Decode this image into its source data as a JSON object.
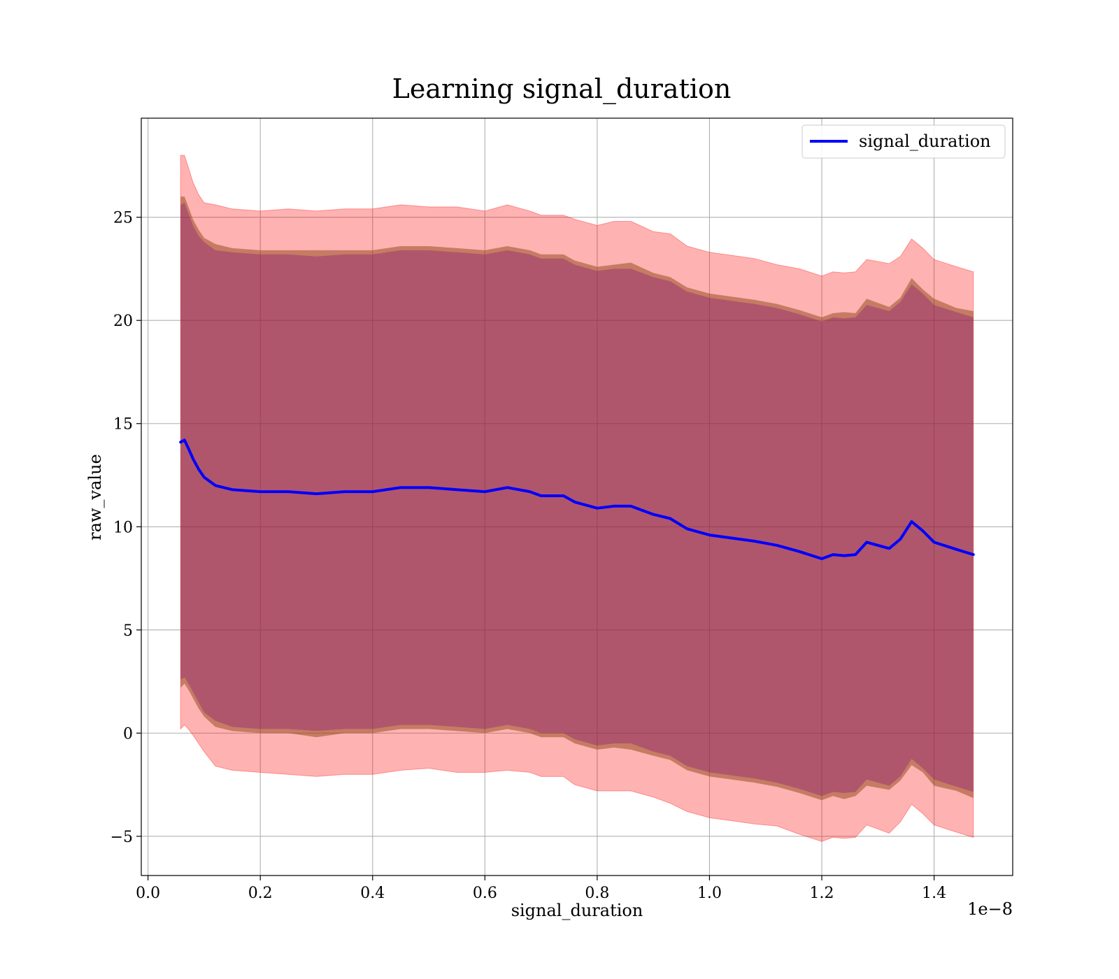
{
  "chart_data": {
    "type": "line",
    "title": "Learning signal_duration",
    "xlabel": "signal_duration",
    "ylabel": "raw_value",
    "x_offset_text": "1e−8",
    "x_scale_exponent": -8,
    "xlim": [
      -0.012,
      1.54
    ],
    "ylim": [
      -6.9,
      29.8
    ],
    "xticks": [
      0.0,
      0.2,
      0.4,
      0.6,
      0.8,
      1.0,
      1.2,
      1.4
    ],
    "xtick_labels": [
      "0.0",
      "0.2",
      "0.4",
      "0.6",
      "0.8",
      "1.0",
      "1.2",
      "1.4"
    ],
    "yticks": [
      -5,
      0,
      5,
      10,
      15,
      20,
      25
    ],
    "ytick_labels": [
      "−5",
      "0",
      "5",
      "10",
      "15",
      "20",
      "25"
    ],
    "grid": true,
    "legend_position": "top-right",
    "colors": {
      "line": "#0000ff",
      "outer_band": "#ff0000",
      "mid_band": "#8b4513",
      "inner_band": "#800080",
      "grid": "#b0b0b0"
    },
    "series": [
      {
        "name": "signal_duration",
        "x": [
          0.058,
          0.065,
          0.072,
          0.08,
          0.09,
          0.1,
          0.12,
          0.15,
          0.2,
          0.25,
          0.3,
          0.35,
          0.4,
          0.45,
          0.5,
          0.55,
          0.6,
          0.64,
          0.68,
          0.7,
          0.74,
          0.76,
          0.8,
          0.83,
          0.86,
          0.9,
          0.93,
          0.96,
          1.0,
          1.04,
          1.08,
          1.12,
          1.16,
          1.2,
          1.22,
          1.24,
          1.26,
          1.28,
          1.32,
          1.34,
          1.36,
          1.38,
          1.4,
          1.44,
          1.47
        ],
        "y": [
          14.1,
          14.2,
          13.8,
          13.3,
          12.8,
          12.4,
          12.0,
          11.8,
          11.7,
          11.7,
          11.6,
          11.7,
          11.7,
          11.9,
          11.9,
          11.8,
          11.7,
          11.9,
          11.7,
          11.5,
          11.5,
          11.2,
          10.9,
          11.0,
          11.0,
          10.6,
          10.4,
          9.9,
          9.6,
          9.45,
          9.3,
          9.1,
          8.8,
          8.45,
          8.65,
          8.6,
          8.65,
          9.25,
          8.95,
          9.4,
          10.25,
          9.8,
          9.25,
          8.9,
          8.65
        ],
        "band_outer_half_width": [
          13.9,
          13.8,
          13.6,
          13.4,
          13.3,
          13.3,
          13.6,
          13.6,
          13.6,
          13.7,
          13.7,
          13.7,
          13.7,
          13.7,
          13.6,
          13.7,
          13.6,
          13.7,
          13.6,
          13.6,
          13.6,
          13.7,
          13.7,
          13.8,
          13.8,
          13.7,
          13.8,
          13.7,
          13.7,
          13.7,
          13.7,
          13.6,
          13.7,
          13.7,
          13.7,
          13.7,
          13.7,
          13.7,
          13.8,
          13.7,
          13.7,
          13.7,
          13.7,
          13.7,
          13.7
        ],
        "band_mid_half_width": [
          11.9,
          11.8,
          11.7,
          11.6,
          11.6,
          11.6,
          11.7,
          11.7,
          11.7,
          11.7,
          11.8,
          11.7,
          11.7,
          11.7,
          11.7,
          11.7,
          11.7,
          11.7,
          11.7,
          11.7,
          11.7,
          11.7,
          11.7,
          11.7,
          11.8,
          11.7,
          11.7,
          11.7,
          11.7,
          11.7,
          11.7,
          11.7,
          11.7,
          11.7,
          11.7,
          11.8,
          11.7,
          11.8,
          11.7,
          11.7,
          11.8,
          11.7,
          11.8,
          11.7,
          11.8
        ],
        "band_inner_half_width": [
          11.5,
          11.5,
          11.4,
          11.3,
          11.3,
          11.4,
          11.4,
          11.5,
          11.5,
          11.5,
          11.5,
          11.5,
          11.5,
          11.5,
          11.5,
          11.5,
          11.5,
          11.5,
          11.5,
          11.5,
          11.5,
          11.5,
          11.5,
          11.5,
          11.5,
          11.5,
          11.5,
          11.5,
          11.5,
          11.5,
          11.5,
          11.5,
          11.5,
          11.5,
          11.5,
          11.5,
          11.5,
          11.5,
          11.5,
          11.5,
          11.5,
          11.5,
          11.5,
          11.5,
          11.5
        ]
      }
    ]
  }
}
